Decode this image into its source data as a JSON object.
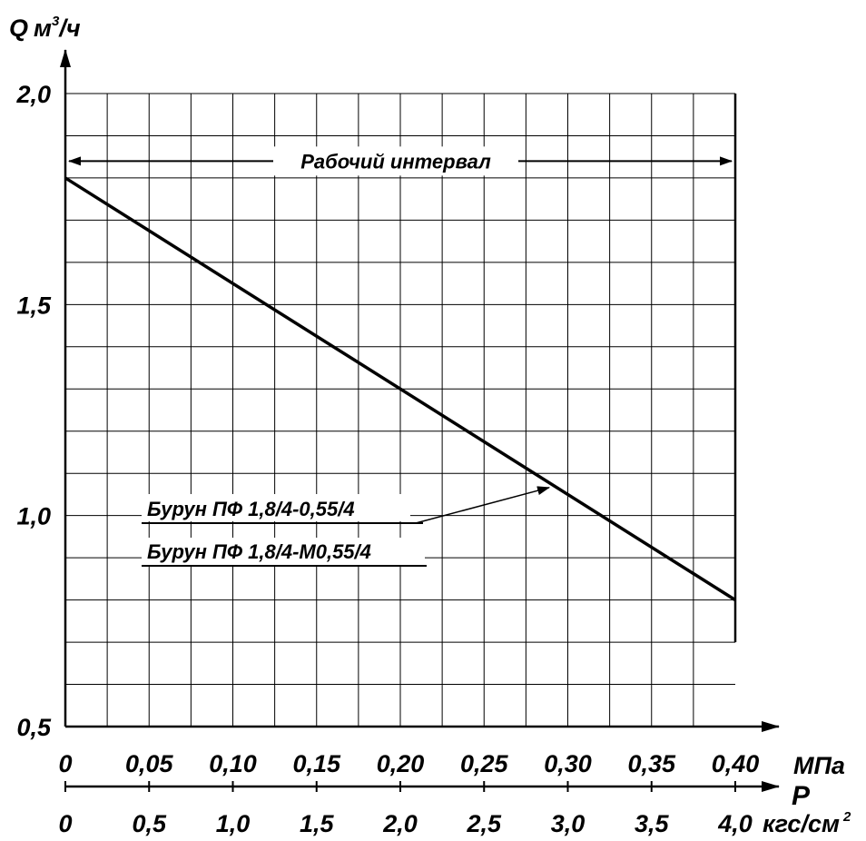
{
  "chart_data": {
    "type": "line",
    "title": "",
    "ylabel": "Q м³/ч",
    "ylabel_parts": {
      "q": "Q",
      "unit": "м",
      "sup": "3",
      "rest": "/ч"
    },
    "xlabel_mpa": "МПа",
    "xlabel_p": "P",
    "xlabel_kgs": {
      "unit": "кгс/см",
      "sup": "2"
    },
    "x_unit": "kgf/cm2",
    "xlim": [
      0,
      4.0
    ],
    "ylim": [
      0.5,
      2.0
    ],
    "y_ticks": [
      "0,5",
      "1,0",
      "1,5",
      "2,0"
    ],
    "y_tick_values": [
      0.5,
      1.0,
      1.5,
      2.0
    ],
    "x_ticks_mpa": [
      "0",
      "0,05",
      "0,10",
      "0,15",
      "0,20",
      "0,25",
      "0,30",
      "0,35",
      "0,40"
    ],
    "x_ticks_kgs": [
      "0",
      "0,5",
      "1,0",
      "1,5",
      "2,0",
      "2,5",
      "3,0",
      "3,5",
      "4,0"
    ],
    "x_tick_values": [
      0,
      0.5,
      1.0,
      1.5,
      2.0,
      2.5,
      3.0,
      3.5,
      4.0
    ],
    "grid": true,
    "series": [
      {
        "name": "Бурун ПФ 1,8/4-0,55/4",
        "x": [
          0,
          4.0
        ],
        "y": [
          1.8,
          0.8
        ]
      },
      {
        "name": "Бурун ПФ 1,8/4-М0,55/4",
        "x": [
          0,
          4.0
        ],
        "y": [
          1.8,
          0.8
        ]
      }
    ],
    "annotations": {
      "working_interval": {
        "label": "Рабочий интервал",
        "x_range": [
          0,
          4.0
        ],
        "y": 1.84
      },
      "series_pointer": {
        "x": 2.9,
        "y": 1.075
      }
    }
  },
  "colors": {
    "ink": "#000000",
    "background": "#ffffff"
  }
}
